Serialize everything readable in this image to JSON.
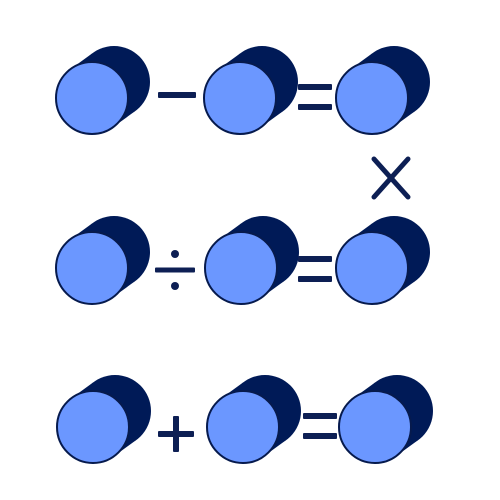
{
  "colors": {
    "background": "#ffffff",
    "cylinder_face": "#6b97ff",
    "cylinder_back": "#001a57",
    "outline": "#061a4d",
    "operator": "#0d1f54"
  },
  "rows": [
    {
      "operator": "minus-icon",
      "equals": "equals-icon"
    },
    {
      "operator": "divide-icon",
      "equals": "equals-icon"
    },
    {
      "operator": "plus-icon",
      "equals": "equals-icon"
    }
  ],
  "vertical_operator": "times-icon"
}
